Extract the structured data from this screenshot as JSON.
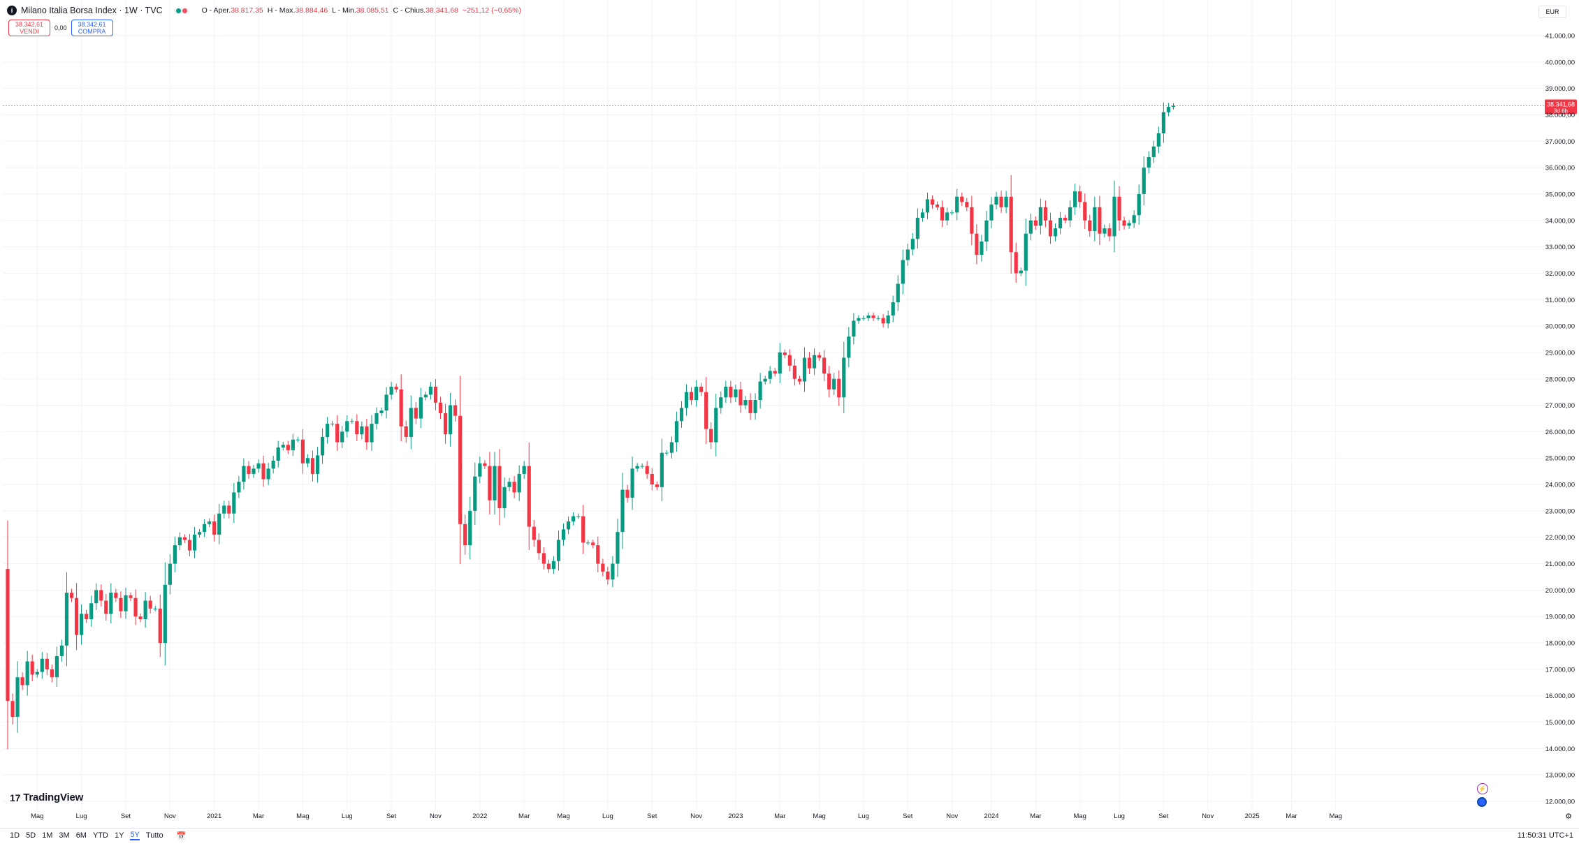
{
  "header": {
    "symbol_icon": "italy-index-icon",
    "title": "Milano Italia Borsa Index · 1W · TVC",
    "ohlc": [
      {
        "label": "O - Aper.",
        "value": "38.817,35"
      },
      {
        "label": "H - Max.",
        "value": "38.884,46"
      },
      {
        "label": "L - Min.",
        "value": "38.085,51"
      },
      {
        "label": "C - Chius.",
        "value": "38.341,68"
      },
      {
        "label": "",
        "value": "−251,12 (−0,65%)"
      }
    ]
  },
  "trade": {
    "sell_price": "38.342,61",
    "sell_label": "VENDI",
    "spread": "0,00",
    "buy_price": "38.342,61",
    "buy_label": "COMPRA"
  },
  "currency": "EUR",
  "last_price": {
    "value": "38.341,68",
    "countdown": "3d 6h"
  },
  "logo_text": "TradingView",
  "periods": [
    "1D",
    "5D",
    "1M",
    "3M",
    "6M",
    "YTD",
    "1Y",
    "5Y",
    "Tutto"
  ],
  "active_period": "5Y",
  "clock": "11:50:31 UTC+1",
  "colors": {
    "up": "#089981",
    "down": "#f23645",
    "grid": "#f0f3fa"
  },
  "chart_data": {
    "type": "candlestick",
    "ylim": [
      11500,
      42000
    ],
    "y_ticks": [
      "12.000,00",
      "13.000,00",
      "14.000,00",
      "15.000,00",
      "16.000,00",
      "17.000,00",
      "18.000,00",
      "19.000,00",
      "20.000,00",
      "21.000,00",
      "22.000,00",
      "23.000,00",
      "24.000,00",
      "25.000,00",
      "26.000,00",
      "27.000,00",
      "28.000,00",
      "29.000,00",
      "30.000,00",
      "31.000,00",
      "32.000,00",
      "33.000,00",
      "34.000,00",
      "35.000,00",
      "36.000,00",
      "37.000,00",
      "38.000,00",
      "39.000,00",
      "40.000,00",
      "41.000,00"
    ],
    "x_ticks": [
      {
        "label": "Mag",
        "week": 6
      },
      {
        "label": "Lug",
        "week": 15
      },
      {
        "label": "Set",
        "week": 24
      },
      {
        "label": "Nov",
        "week": 33
      },
      {
        "label": "2021",
        "week": 42
      },
      {
        "label": "Mar",
        "week": 51
      },
      {
        "label": "Mag",
        "week": 60
      },
      {
        "label": "Lug",
        "week": 69
      },
      {
        "label": "Set",
        "week": 78
      },
      {
        "label": "Nov",
        "week": 87
      },
      {
        "label": "2022",
        "week": 96
      },
      {
        "label": "Mar",
        "week": 105
      },
      {
        "label": "Mag",
        "week": 113
      },
      {
        "label": "Lug",
        "week": 122
      },
      {
        "label": "Set",
        "week": 131
      },
      {
        "label": "Nov",
        "week": 140
      },
      {
        "label": "2023",
        "week": 148
      },
      {
        "label": "Mar",
        "week": 157
      },
      {
        "label": "Mag",
        "week": 165
      },
      {
        "label": "Lug",
        "week": 174
      },
      {
        "label": "Set",
        "week": 183
      },
      {
        "label": "Nov",
        "week": 192
      },
      {
        "label": "2024",
        "week": 200
      },
      {
        "label": "Mar",
        "week": 209
      },
      {
        "label": "Mag",
        "week": 218
      },
      {
        "label": "Lug",
        "week": 226
      },
      {
        "label": "Set",
        "week": 235
      },
      {
        "label": "Nov",
        "week": 244
      },
      {
        "label": "2025",
        "week": 253
      },
      {
        "label": "Mar",
        "week": 261
      },
      {
        "label": "Mag",
        "week": 270
      }
    ],
    "closes": [
      15800,
      15200,
      16700,
      16400,
      17300,
      16800,
      16900,
      17400,
      17000,
      16700,
      17500,
      17900,
      19900,
      19700,
      18300,
      19100,
      18900,
      19500,
      20000,
      19600,
      19100,
      19900,
      19700,
      19200,
      19800,
      19700,
      19000,
      18900,
      19600,
      19300,
      19300,
      18000,
      20200,
      21000,
      21700,
      22000,
      21900,
      21500,
      22100,
      22200,
      22500,
      22600,
      22100,
      22900,
      23200,
      22900,
      23700,
      24100,
      24700,
      24400,
      24600,
      24800,
      24200,
      24600,
      24900,
      25400,
      25500,
      25300,
      25700,
      25700,
      24800,
      25000,
      24400,
      25100,
      25800,
      26300,
      26300,
      25600,
      26000,
      26400,
      26400,
      25900,
      26200,
      25600,
      26300,
      26700,
      26800,
      27400,
      27700,
      27600,
      26200,
      25800,
      26900,
      26500,
      27300,
      27400,
      27700,
      27100,
      26700,
      25900,
      27000,
      26600,
      22500,
      21700,
      23000,
      24300,
      24800,
      24700,
      23400,
      24700,
      23100,
      23900,
      24100,
      23700,
      24400,
      24700,
      22400,
      21900,
      21400,
      21000,
      20800,
      21100,
      21900,
      22300,
      22600,
      22800,
      22800,
      21800,
      21800,
      21700,
      21000,
      20700,
      20400,
      21000,
      22200,
      23800,
      23500,
      24600,
      24700,
      24700,
      24400,
      24000,
      23900,
      25200,
      25200,
      25600,
      26400,
      26900,
      27500,
      27200,
      27700,
      27500,
      26100,
      25600,
      26900,
      27300,
      27700,
      27300,
      27600,
      27000,
      27200,
      26700,
      27200,
      27900,
      28000,
      28300,
      28200,
      29000,
      28900,
      28500,
      28000,
      27900,
      28800,
      28400,
      28900,
      28800,
      28200,
      27600,
      28000,
      27300,
      28800,
      29600,
      30200,
      30300,
      30300,
      30400,
      30300,
      30300,
      30100,
      30400,
      30900,
      31600,
      32500,
      32900,
      33300,
      34100,
      34300,
      34800,
      34600,
      34500,
      34000,
      34300,
      34300,
      34900,
      34700,
      34500,
      33500,
      32700,
      33200,
      34000,
      34600,
      34900,
      34500,
      34900,
      32800,
      32000,
      32100,
      33500,
      34000,
      33800,
      34500,
      34000,
      33400,
      33700,
      34100,
      34000,
      34500,
      35100,
      34700,
      34000,
      33600,
      34500,
      33500,
      33700,
      33400,
      34900,
      34000,
      33800,
      33900,
      34200,
      35000,
      36000,
      36400,
      36800,
      37300,
      38100,
      38300,
      38341.68
    ],
    "first_open": 20800
  }
}
